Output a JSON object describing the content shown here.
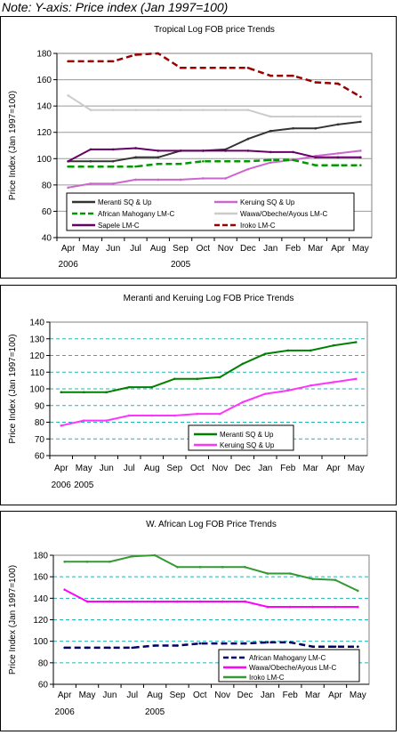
{
  "note": "Note: Y-axis: Price index (Jan 1997=100)",
  "chart_data": [
    {
      "type": "line",
      "title": "Tropical Log FOB price Trends",
      "ylabel": "Price Index (Jan 1997=100)",
      "categories": [
        "Apr",
        "May",
        "Jun",
        "Jul",
        "Aug",
        "Sep",
        "Oct",
        "Nov",
        "Dec",
        "Jan",
        "Feb",
        "Mar",
        "Apr",
        "May"
      ],
      "year_labels": [
        {
          "label": "2005",
          "at": "Sep"
        },
        {
          "label": "2006",
          "at": "Apr"
        }
      ],
      "ylim": [
        40,
        180
      ],
      "yticks": [
        40,
        60,
        80,
        100,
        120,
        140,
        160,
        180
      ],
      "grid": true,
      "legend_placement": "bottom",
      "series": [
        {
          "name": "Meranti SQ & Up",
          "color": "#333333",
          "dash": "solid",
          "values": [
            98,
            98,
            98,
            101,
            101,
            106,
            106,
            107,
            115,
            121,
            123,
            123,
            126,
            128
          ]
        },
        {
          "name": "Keruing SQ & Up",
          "color": "#cc66cc",
          "dash": "solid",
          "values": [
            78,
            81,
            81,
            84,
            84,
            84,
            85,
            85,
            92,
            97,
            99,
            102,
            104,
            106
          ]
        },
        {
          "name": "African Mahogany LM-C",
          "color": "#009900",
          "dash": "dashed",
          "values": [
            94,
            94,
            94,
            94,
            96,
            96,
            98,
            98,
            98,
            99,
            99,
            95,
            95,
            95
          ]
        },
        {
          "name": "Wawa/Obeche/Ayous LM-C",
          "color": "#cccccc",
          "dash": "solid",
          "values": [
            148,
            137,
            137,
            137,
            137,
            137,
            137,
            137,
            137,
            132,
            132,
            132,
            132,
            132
          ]
        },
        {
          "name": "Sapele LM-C",
          "color": "#660066",
          "dash": "solid",
          "values": [
            98,
            107,
            107,
            108,
            106,
            106,
            106,
            106,
            106,
            105,
            105,
            101,
            101,
            101
          ]
        },
        {
          "name": "Iroko LM-C",
          "color": "#990000",
          "dash": "dashed",
          "values": [
            174,
            174,
            174,
            179,
            180,
            169,
            169,
            169,
            169,
            163,
            163,
            158,
            157,
            147
          ]
        }
      ]
    },
    {
      "type": "line",
      "title": "Meranti and Keruing Log FOB Price Trends",
      "ylabel": "Price Index (Jan 1997=100)",
      "categories": [
        "Apr",
        "May",
        "Jun",
        "Jul",
        "Aug",
        "Sep",
        "Oct",
        "Nov",
        "Dec",
        "Jan",
        "Feb",
        "Mar",
        "Apr",
        "May"
      ],
      "year_labels": [
        {
          "label": "2005",
          "at": "May"
        },
        {
          "label": "2006",
          "at": "Apr"
        }
      ],
      "ylim": [
        60,
        140
      ],
      "yticks": [
        60,
        70,
        80,
        90,
        100,
        110,
        120,
        130,
        140
      ],
      "grid": true,
      "legend_placement": "bottom-right",
      "series": [
        {
          "name": "Meranti SQ & Up",
          "color": "#008000",
          "dash": "solid",
          "values": [
            98,
            98,
            98,
            101,
            101,
            106,
            106,
            107,
            115,
            121,
            123,
            123,
            126,
            128
          ]
        },
        {
          "name": "Keruing SQ & Up",
          "color": "#ff33ff",
          "dash": "solid",
          "values": [
            78,
            81,
            81,
            84,
            84,
            84,
            85,
            85,
            92,
            97,
            99,
            102,
            104,
            106
          ]
        }
      ]
    },
    {
      "type": "line",
      "title": "W. African Log FOB Price Trends",
      "ylabel": "Price Index (Jan 1997=100)",
      "categories": [
        "Apr",
        "May",
        "Jun",
        "Jul",
        "Aug",
        "Sep",
        "Oct",
        "Nov",
        "Dec",
        "Jan",
        "Feb",
        "Mar",
        "Apr",
        "May"
      ],
      "year_labels": [
        {
          "label": "2005",
          "at": "Aug"
        },
        {
          "label": "2006",
          "at": "Apr"
        }
      ],
      "ylim": [
        60,
        180
      ],
      "yticks": [
        60,
        80,
        100,
        120,
        140,
        160,
        180
      ],
      "grid": true,
      "legend_placement": "bottom-right",
      "series": [
        {
          "name": "African Mahogany LM-C",
          "color": "#000066",
          "dash": "dashed",
          "values": [
            94,
            94,
            94,
            94,
            96,
            96,
            98,
            98,
            98,
            99,
            99,
            95,
            95,
            95
          ]
        },
        {
          "name": "Wawa/Obeche/Ayous LM-C",
          "color": "#ff00ff",
          "dash": "solid",
          "values": [
            148,
            137,
            137,
            137,
            137,
            137,
            137,
            137,
            137,
            132,
            132,
            132,
            132,
            132
          ]
        },
        {
          "name": "Iroko LM-C",
          "color": "#339933",
          "dash": "solid",
          "values": [
            174,
            174,
            174,
            179,
            180,
            169,
            169,
            169,
            169,
            163,
            163,
            158,
            157,
            147
          ]
        }
      ]
    }
  ]
}
